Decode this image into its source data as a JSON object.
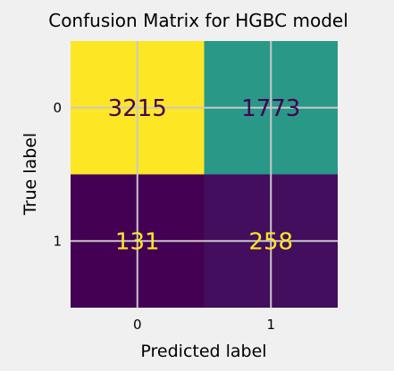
{
  "chart_data": {
    "type": "heatmap",
    "title": "Confusion Matrix for HGBC model",
    "xlabel": "Predicted label",
    "ylabel": "True label",
    "x_categories": [
      "0",
      "1"
    ],
    "y_categories": [
      "0",
      "1"
    ],
    "values": [
      [
        3215,
        1773
      ],
      [
        131,
        258
      ]
    ],
    "colormap": "viridis",
    "colorbar": false,
    "grid": true,
    "colors": {
      "background": "#f0f0f0",
      "grid": "#c8c8c8",
      "text_on_light": "#440154",
      "text_on_dark": "#fde725"
    }
  }
}
